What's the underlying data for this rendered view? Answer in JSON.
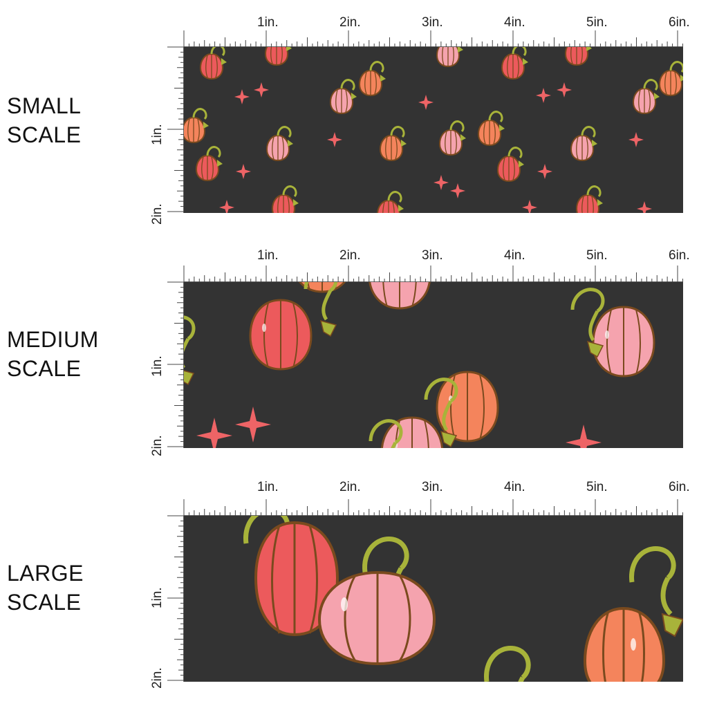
{
  "colors": {
    "background": "#333333",
    "pumpkin_red": "#ec5a5c",
    "pumpkin_pink": "#f5a3ae",
    "pumpkin_orange": "#f4845c",
    "outline": "#7a4a1e",
    "vine": "#a8b33a",
    "sparkle": "#ee6466"
  },
  "ruler_labels": {
    "top": [
      "1in.",
      "2in.",
      "3in.",
      "4in.",
      "5in.",
      "6in."
    ],
    "side": [
      "1in.",
      "2in."
    ]
  },
  "rows": [
    {
      "label_line1": "SMALL",
      "label_line2": "SCALE"
    },
    {
      "label_line1": "MEDIUM",
      "label_line2": "SCALE"
    },
    {
      "label_line1": "LARGE",
      "label_line2": "SCALE"
    }
  ]
}
